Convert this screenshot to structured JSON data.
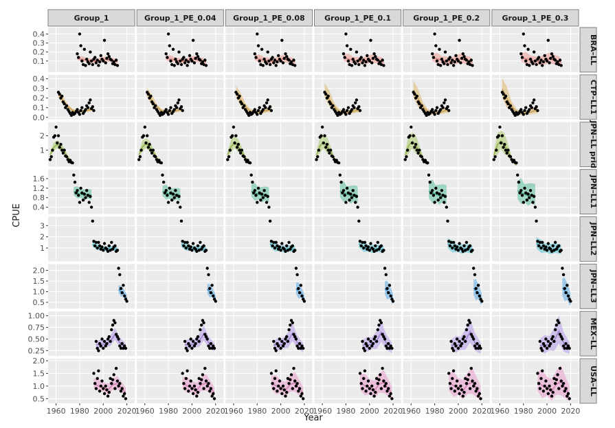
{
  "chart_data": {
    "type": "scatter",
    "title": "",
    "xlabel": "Year",
    "ylabel": "CPUE",
    "x_ticks": [
      1960,
      1980,
      2000,
      2020
    ],
    "x_range": [
      1955,
      2025
    ],
    "grid": true,
    "columns": [
      "Group_1",
      "Group_1_PE_0.04",
      "Group_1_PE_0.08",
      "Group_1_PE_0.1",
      "Group_1_PE_0.2",
      "Group_1_PE_0.3"
    ],
    "fleets": [
      {
        "name": "BRA–LL",
        "color": "#f08a80",
        "y_range": [
          0.0,
          0.45
        ],
        "y_ticks": [
          0.1,
          0.2,
          0.3,
          0.4
        ],
        "observed": {
          "x": [
            1978,
            1979,
            1980,
            1981,
            1982,
            1983,
            1984,
            1985,
            1986,
            1987,
            1988,
            1989,
            1990,
            1991,
            1992,
            1993,
            1994,
            1995,
            1996,
            1997,
            1998,
            1999,
            2000,
            2001,
            2002,
            2003,
            2004,
            2005,
            2006,
            2007,
            2008,
            2009,
            2010,
            2011,
            2012
          ],
          "y": [
            0.18,
            0.14,
            0.4,
            0.27,
            0.1,
            0.06,
            0.23,
            0.05,
            0.12,
            0.09,
            0.07,
            0.2,
            0.1,
            0.06,
            0.12,
            0.14,
            0.08,
            0.11,
            0.05,
            0.09,
            0.16,
            0.12,
            0.1,
            0.33,
            0.08,
            0.13,
            0.18,
            0.15,
            0.12,
            0.11,
            0.07,
            0.09,
            0.06,
            0.11,
            0.05
          ]
        },
        "fit": {
          "x": [
            1978,
            1982,
            1986,
            1990,
            1994,
            1998,
            2002,
            2006,
            2010,
            2012
          ],
          "y": [
            0.13,
            0.12,
            0.11,
            0.1,
            0.1,
            0.11,
            0.12,
            0.11,
            0.1,
            0.09
          ]
        }
      },
      {
        "name": "CTP–LL1",
        "color": "#d9a84a",
        "y_range": [
          0.0,
          0.42
        ],
        "y_ticks": [
          0.0,
          0.1,
          0.2,
          0.3,
          0.4
        ],
        "observed": {
          "x": [
            1962,
            1963,
            1964,
            1965,
            1966,
            1967,
            1968,
            1969,
            1970,
            1971,
            1972,
            1973,
            1974,
            1975,
            1976,
            1977,
            1978,
            1979,
            1980,
            1981,
            1982,
            1983,
            1984,
            1985,
            1986,
            1987,
            1988,
            1989,
            1990,
            1991,
            1992
          ],
          "y": [
            0.26,
            0.24,
            0.2,
            0.22,
            0.16,
            0.14,
            0.1,
            0.12,
            0.08,
            0.06,
            0.04,
            0.02,
            0.05,
            0.03,
            0.04,
            0.06,
            0.08,
            0.05,
            0.03,
            0.07,
            0.1,
            0.04,
            0.06,
            0.08,
            0.12,
            0.1,
            0.15,
            0.18,
            0.09,
            0.11,
            0.07
          ]
        },
        "fit": {
          "x": [
            1962,
            1966,
            1970,
            1974,
            1978,
            1982,
            1986,
            1990,
            1992
          ],
          "y": [
            0.24,
            0.17,
            0.11,
            0.07,
            0.06,
            0.06,
            0.07,
            0.08,
            0.08
          ]
        }
      },
      {
        "name": "JPN–LL prid",
        "color": "#9cc34a",
        "y_range": [
          0.0,
          2.8
        ],
        "y_ticks": [
          1,
          2
        ],
        "observed": {
          "x": [
            1955,
            1956,
            1957,
            1958,
            1959,
            1960,
            1961,
            1962,
            1963,
            1964,
            1965,
            1966,
            1967,
            1968,
            1969,
            1970,
            1971,
            1972,
            1973,
            1974
          ],
          "y": [
            0.35,
            0.55,
            1.0,
            1.9,
            2.0,
            2.6,
            1.5,
            2.0,
            1.2,
            1.4,
            1.0,
            0.8,
            1.0,
            0.6,
            0.55,
            0.35,
            0.2,
            0.3,
            0.15,
            0.12
          ]
        },
        "fit": {
          "x": [
            1955,
            1958,
            1961,
            1964,
            1967,
            1970,
            1973,
            1974
          ],
          "y": [
            0.7,
            1.2,
            1.4,
            1.2,
            0.9,
            0.5,
            0.25,
            0.2
          ]
        }
      },
      {
        "name": "JPN–LL1",
        "color": "#3cb48c",
        "y_range": [
          0.2,
          1.9
        ],
        "y_ticks": [
          0.4,
          0.8,
          1.2,
          1.6
        ],
        "observed": {
          "x": [
            1975,
            1976,
            1977,
            1978,
            1979,
            1980,
            1981,
            1982,
            1983,
            1984,
            1985,
            1986,
            1987,
            1988,
            1989,
            1990
          ],
          "y": [
            1.75,
            1.45,
            1.0,
            1.1,
            0.9,
            0.6,
            1.2,
            1.0,
            0.7,
            0.95,
            0.8,
            1.1,
            0.9,
            0.6,
            0.85,
            0.4
          ]
        },
        "fit": {
          "x": [
            1975,
            1978,
            1981,
            1984,
            1987,
            1990
          ],
          "y": [
            1.05,
            1.0,
            0.95,
            0.9,
            0.95,
            0.9
          ]
        }
      },
      {
        "name": "JPN–LL2",
        "color": "#35b5c8",
        "y_range": [
          0.0,
          3.6
        ],
        "y_ticks": [
          1,
          2,
          3
        ],
        "observed": {
          "x": [
            1991,
            1992,
            1993,
            1994,
            1995,
            1996,
            1997,
            1998,
            1999,
            2000,
            2001,
            2002,
            2003,
            2004,
            2005,
            2006,
            2007,
            2008,
            2009,
            2010,
            2011,
            2012
          ],
          "y": [
            3.4,
            1.6,
            1.2,
            1.5,
            1.0,
            1.5,
            1.2,
            0.9,
            1.1,
            0.8,
            1.4,
            1.0,
            0.9,
            0.7,
            1.2,
            0.8,
            1.5,
            0.9,
            1.1,
            1.2,
            0.7,
            0.8
          ]
        },
        "fit": {
          "x": [
            1991,
            1995,
            1999,
            2003,
            2007,
            2011,
            2012
          ],
          "y": [
            1.3,
            1.05,
            0.95,
            0.9,
            0.95,
            0.9,
            0.85
          ]
        }
      },
      {
        "name": "JPN–LL3",
        "color": "#3f9be0",
        "y_range": [
          0.3,
          2.2
        ],
        "y_ticks": [
          0.5,
          1.0,
          1.5,
          2.0
        ],
        "observed": {
          "x": [
            2013,
            2014,
            2015,
            2016,
            2017,
            2018,
            2019,
            2020
          ],
          "y": [
            2.1,
            1.8,
            1.15,
            0.95,
            1.3,
            0.8,
            0.65,
            0.55
          ]
        },
        "fit": {
          "x": [
            2013,
            2015,
            2017,
            2019,
            2020
          ],
          "y": [
            1.1,
            1.0,
            0.95,
            0.75,
            0.7
          ]
        }
      },
      {
        "name": "MEX–LL",
        "color": "#a98ae6",
        "y_range": [
          0.18,
          1.05
        ],
        "y_ticks": [
          0.25,
          0.5,
          0.75,
          1.0
        ],
        "observed": {
          "x": [
            1994,
            1995,
            1996,
            1997,
            1998,
            1999,
            2000,
            2001,
            2002,
            2003,
            2004,
            2005,
            2006,
            2007,
            2008,
            2009,
            2010,
            2011,
            2012,
            2013,
            2014,
            2015,
            2016,
            2017,
            2018,
            2019
          ],
          "y": [
            0.45,
            0.3,
            0.25,
            0.4,
            0.35,
            0.5,
            0.3,
            0.45,
            0.35,
            0.4,
            0.5,
            0.55,
            0.45,
            0.7,
            0.8,
            0.9,
            0.85,
            0.6,
            0.55,
            0.5,
            0.35,
            0.3,
            0.4,
            0.3,
            0.35,
            0.3
          ]
        },
        "fit": {
          "x": [
            1994,
            1998,
            2002,
            2006,
            2010,
            2014,
            2019
          ],
          "y": [
            0.38,
            0.38,
            0.4,
            0.45,
            0.6,
            0.42,
            0.32
          ]
        }
      },
      {
        "name": "USA–LL",
        "color": "#e88ac4",
        "y_range": [
          0.4,
          2.0
        ],
        "y_ticks": [
          0.5,
          1.0,
          1.5,
          2.0
        ],
        "observed": {
          "x": [
            1992,
            1993,
            1994,
            1995,
            1996,
            1997,
            1998,
            1999,
            2000,
            2001,
            2002,
            2003,
            2004,
            2005,
            2006,
            2007,
            2008,
            2009,
            2010,
            2011,
            2012,
            2013,
            2014,
            2015,
            2016,
            2017,
            2018,
            2019
          ],
          "y": [
            1.5,
            1.1,
            0.9,
            1.3,
            1.6,
            0.8,
            1.0,
            1.2,
            0.9,
            0.7,
            1.0,
            0.85,
            0.6,
            0.75,
            1.3,
            1.1,
            1.25,
            1.45,
            0.9,
            1.7,
            1.2,
            1.0,
            1.1,
            0.8,
            0.9,
            0.6,
            0.7,
            0.5
          ]
        },
        "fit": {
          "x": [
            1992,
            1996,
            2000,
            2004,
            2008,
            2012,
            2016,
            2019
          ],
          "y": [
            1.1,
            1.0,
            0.95,
            0.85,
            1.05,
            1.1,
            0.9,
            0.75
          ]
        }
      }
    ]
  }
}
